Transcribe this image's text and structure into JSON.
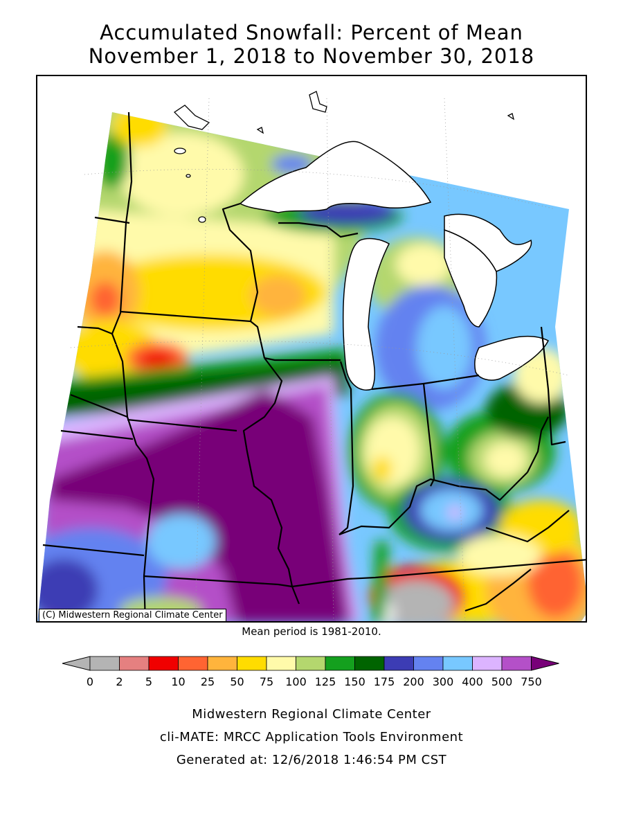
{
  "title": {
    "line1": "Accumulated Snowfall: Percent of Mean",
    "line2": "November 1, 2018 to November 30, 2018"
  },
  "map": {
    "copyright": "(C) Midwestern Regional Climate Center",
    "mean_note": "Mean period is 1981-2010."
  },
  "legend": {
    "ticks": [
      "0",
      "2",
      "5",
      "10",
      "25",
      "50",
      "75",
      "100",
      "125",
      "150",
      "175",
      "200",
      "300",
      "400",
      "500",
      "750"
    ],
    "colors": [
      "#b4b4b4",
      "#e58080",
      "#f00000",
      "#ff6432",
      "#ffb43c",
      "#ffdc00",
      "#fffaaa",
      "#b4d76e",
      "#14a01e",
      "#006400",
      "#3c3cb4",
      "#6482f0",
      "#78c8ff",
      "#dcb4ff",
      "#b450c8"
    ],
    "under_color": "#b4b4b4",
    "over_color": "#780078"
  },
  "footer": {
    "line1": "Midwestern Regional Climate Center",
    "line2": "cli-MATE: MRCC Application Tools Environment",
    "line3": "Generated at: 12/6/2018 1:46:54 PM CST"
  }
}
